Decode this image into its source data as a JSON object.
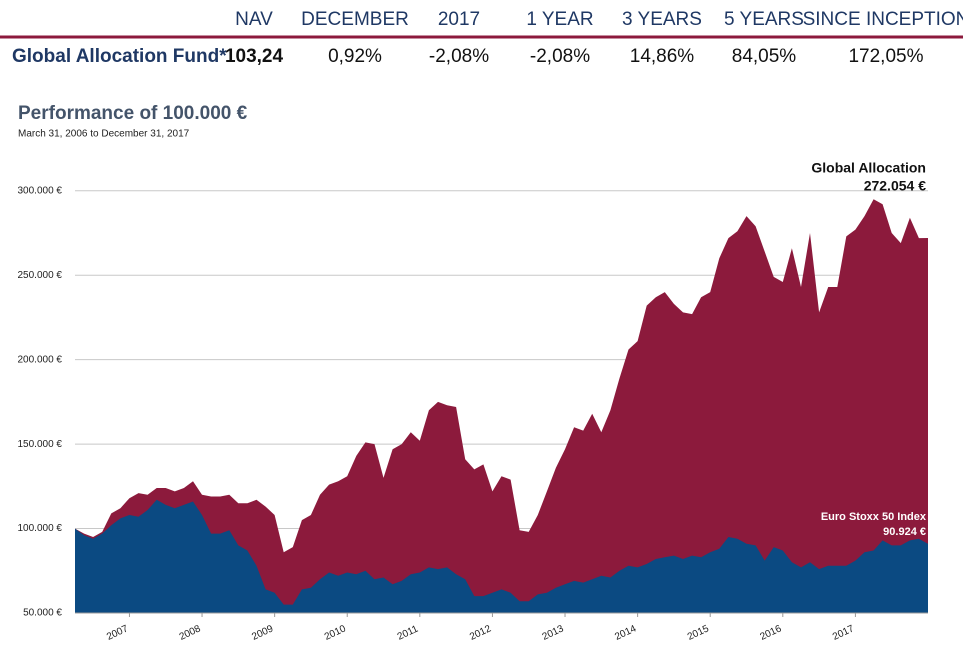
{
  "table": {
    "columns": [
      "NAV",
      "DECEMBER",
      "2017",
      "1 YEAR",
      "3 YEARS",
      "5 YEARS",
      "SINCE INCEPTION"
    ],
    "rows": [
      {
        "name": "Global Allocation Fund*",
        "values": [
          "103,24",
          "0,92%",
          "-2,08%",
          "-2,08%",
          "14,86%",
          "84,05%",
          "172,05%"
        ]
      }
    ]
  },
  "chart_data": {
    "type": "area",
    "title": "Performance of 100.000 €",
    "subtitle": "March 31, 2006 to December 31, 2017",
    "annotations": [
      {
        "text": "Global Allocation",
        "value_text": "272.054 €"
      },
      {
        "text": "Euro Stoxx 50 Index",
        "value_text": "90.924 €"
      }
    ],
    "x": [
      2006.25,
      2006.375,
      2006.5,
      2006.625,
      2006.75,
      2006.875,
      2007,
      2007.125,
      2007.25,
      2007.375,
      2007.5,
      2007.625,
      2007.75,
      2007.875,
      2008,
      2008.125,
      2008.25,
      2008.375,
      2008.5,
      2008.625,
      2008.75,
      2008.875,
      2009,
      2009.125,
      2009.25,
      2009.375,
      2009.5,
      2009.625,
      2009.75,
      2009.875,
      2010,
      2010.125,
      2010.25,
      2010.375,
      2010.5,
      2010.625,
      2010.75,
      2010.875,
      2011,
      2011.125,
      2011.25,
      2011.375,
      2011.5,
      2011.625,
      2011.75,
      2011.875,
      2012,
      2012.125,
      2012.25,
      2012.375,
      2012.5,
      2012.625,
      2012.75,
      2012.875,
      2013,
      2013.125,
      2013.25,
      2013.375,
      2013.5,
      2013.625,
      2013.75,
      2013.875,
      2014,
      2014.125,
      2014.25,
      2014.375,
      2014.5,
      2014.625,
      2014.75,
      2014.875,
      2015,
      2015.125,
      2015.25,
      2015.375,
      2015.5,
      2015.625,
      2015.75,
      2015.875,
      2016,
      2016.125,
      2016.25,
      2016.375,
      2016.5,
      2016.625,
      2016.75,
      2016.875,
      2017,
      2017.125,
      2017.25,
      2017.375,
      2017.5,
      2017.625,
      2017.75,
      2017.875,
      2018
    ],
    "series": [
      {
        "name": "Global Allocation",
        "color": "#8c1a3c",
        "values": [
          100000,
          97000,
          95000,
          98000,
          109000,
          112000,
          118000,
          121000,
          120000,
          124000,
          124000,
          122000,
          124000,
          128000,
          120000,
          119000,
          119000,
          120000,
          115000,
          115000,
          117000,
          113000,
          108000,
          86000,
          89000,
          105000,
          108000,
          120000,
          126000,
          128000,
          131000,
          143000,
          151000,
          150000,
          130000,
          147000,
          150000,
          157000,
          152000,
          170000,
          175000,
          173000,
          172000,
          141000,
          135000,
          138000,
          122000,
          131000,
          129000,
          99000,
          98000,
          108000,
          122000,
          136000,
          147000,
          160000,
          158000,
          168000,
          157000,
          170000,
          189000,
          206000,
          211000,
          232000,
          237000,
          240000,
          233000,
          228000,
          227000,
          237000,
          240000,
          260000,
          272000,
          276000,
          285000,
          279000,
          264000,
          249000,
          246000,
          266000,
          243000,
          275000,
          228000,
          243000,
          243000,
          273000,
          277000,
          285000,
          295000,
          292000,
          275000,
          269000,
          284000,
          272000,
          272054
        ]
      },
      {
        "name": "Euro Stoxx 50 Index",
        "color": "#0b4a82",
        "values": [
          100000,
          96000,
          94000,
          97000,
          102000,
          106000,
          108000,
          107000,
          111000,
          117000,
          114000,
          112000,
          114000,
          116000,
          108000,
          97000,
          97000,
          99000,
          90000,
          87000,
          78000,
          64000,
          62000,
          55000,
          55000,
          64000,
          65000,
          70000,
          74000,
          72000,
          74000,
          73000,
          75000,
          70000,
          71000,
          67000,
          69000,
          73000,
          74000,
          77000,
          76000,
          77000,
          73000,
          70000,
          60000,
          60000,
          62000,
          64000,
          62000,
          57000,
          57000,
          61000,
          62000,
          65000,
          67000,
          69000,
          68000,
          70000,
          72000,
          71000,
          75000,
          78000,
          77000,
          79000,
          82000,
          83000,
          84000,
          82000,
          84000,
          83000,
          86000,
          88000,
          95000,
          94000,
          91000,
          90000,
          81000,
          89000,
          87000,
          80000,
          77000,
          80000,
          76000,
          78000,
          78000,
          78000,
          81000,
          86000,
          87000,
          93000,
          90000,
          90000,
          93000,
          94000,
          90924
        ]
      }
    ],
    "xlim": [
      2006.25,
      2018
    ],
    "xticks": [
      2007,
      2008,
      2009,
      2010,
      2011,
      2012,
      2013,
      2014,
      2015,
      2016,
      2017
    ],
    "ylim": [
      50000,
      320000
    ],
    "yticks": [
      {
        "value": 50000,
        "label": "50.000 €"
      },
      {
        "value": 100000,
        "label": "100.000 €"
      },
      {
        "value": 150000,
        "label": "150.000 €"
      },
      {
        "value": 200000,
        "label": "200.000 €"
      },
      {
        "value": 250000,
        "label": "250.000 €"
      },
      {
        "value": 300000,
        "label": "300.000 €"
      }
    ],
    "grid": true
  }
}
